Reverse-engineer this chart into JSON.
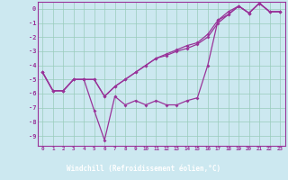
{
  "xlabel": "Windchill (Refroidissement éolien,°C)",
  "bg_color": "#cce8f0",
  "grid_color": "#99ccbb",
  "line_color": "#993399",
  "xlabel_bg": "#6633aa",
  "xlabel_fg": "#ffffff",
  "x_hours": [
    0,
    1,
    2,
    3,
    4,
    5,
    6,
    7,
    8,
    9,
    10,
    11,
    12,
    13,
    14,
    15,
    16,
    17,
    18,
    19,
    20,
    21,
    22,
    23
  ],
  "series1": [
    -4.5,
    -5.8,
    -5.8,
    -5.0,
    -5.0,
    -7.2,
    -9.3,
    -6.2,
    -6.8,
    -6.5,
    -6.8,
    -6.5,
    -6.8,
    -6.8,
    -6.5,
    -6.3,
    -4.0,
    -0.8,
    -0.4,
    0.2,
    -0.3,
    0.4,
    -0.2,
    -0.2
  ],
  "series2": [
    -4.5,
    -5.8,
    -5.8,
    -5.0,
    -5.0,
    -5.0,
    -6.2,
    -5.5,
    -5.0,
    -4.5,
    -4.0,
    -3.5,
    -3.3,
    -3.0,
    -2.8,
    -2.5,
    -2.0,
    -1.0,
    -0.4,
    0.2,
    -0.3,
    0.4,
    -0.2,
    -0.2
  ],
  "series3": [
    -4.5,
    -5.8,
    -5.8,
    -5.0,
    -5.0,
    -5.0,
    -6.2,
    -5.5,
    -5.0,
    -4.5,
    -4.0,
    -3.5,
    -3.2,
    -2.9,
    -2.6,
    -2.4,
    -1.8,
    -0.8,
    -0.2,
    0.2,
    -0.3,
    0.4,
    -0.2,
    -0.2
  ],
  "ylim": [
    -9.7,
    0.5
  ],
  "xlim": [
    -0.5,
    23.5
  ],
  "yticks": [
    0,
    -1,
    -2,
    -3,
    -4,
    -5,
    -6,
    -7,
    -8,
    -9
  ]
}
